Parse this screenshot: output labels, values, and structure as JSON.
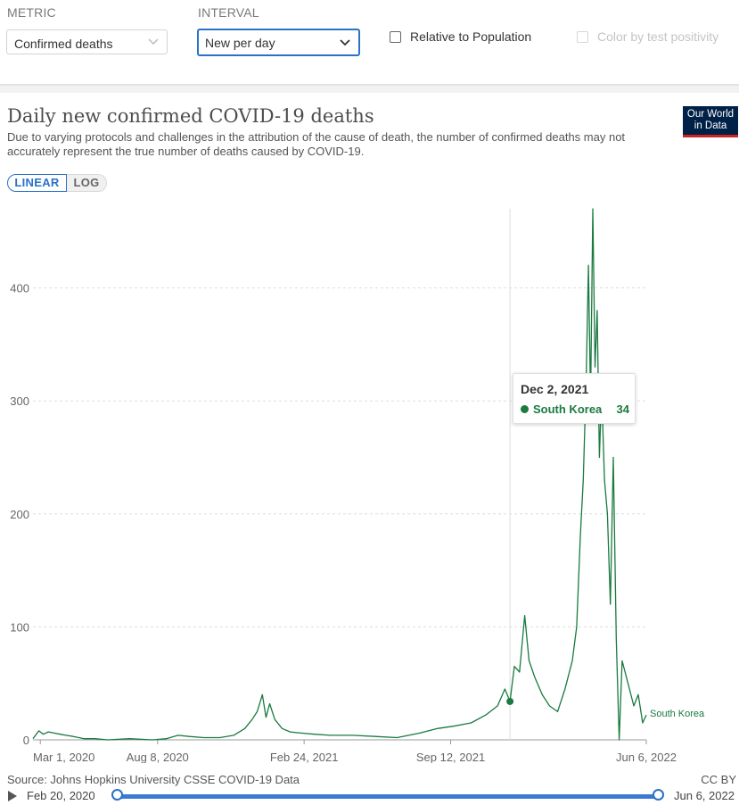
{
  "controls": {
    "metric_label": "METRIC",
    "metric_value": "Confirmed deaths",
    "interval_label": "INTERVAL",
    "interval_value": "New per day",
    "relative_label": "Relative to Population",
    "positivity_label": "Color by test positivity"
  },
  "header": {
    "title": "Daily new confirmed COVID-19 deaths",
    "subtitle": "Due to varying protocols and challenges in the attribution of the cause of death, the number of confirmed deaths may not accurately represent the true number of deaths caused by COVID-19.",
    "logo_line1": "Our World",
    "logo_line2": "in Data"
  },
  "scale_toggle": {
    "linear": "LINEAR",
    "log": "LOG",
    "selected": "LINEAR"
  },
  "tooltip": {
    "date": "Dec 2, 2021",
    "country": "South Korea",
    "value": "34"
  },
  "footer": {
    "source": "Source: Johns Hopkins University CSSE COVID-19 Data",
    "license": "CC BY",
    "timeline_start": "Feb 20, 2020",
    "timeline_end": "Jun 6, 2022"
  },
  "colors": {
    "series": "#1a7a3f",
    "accent": "#2a72c7",
    "logo_bg": "#002147",
    "logo_bar": "#ce261e"
  },
  "chart_data": {
    "type": "line",
    "title": "Daily new confirmed COVID-19 deaths",
    "xlabel": "",
    "ylabel": "",
    "y_ticks": [
      0,
      100,
      200,
      300,
      400
    ],
    "ylim": [
      0,
      470
    ],
    "x_tick_labels": [
      "Mar 1, 2020",
      "Aug 8, 2020",
      "Feb 24, 2021",
      "Sep 12, 2021",
      "Jun 6, 2022"
    ],
    "x_tick_dates": [
      "2020-03-01",
      "2020-08-08",
      "2021-02-24",
      "2021-09-12",
      "2022-06-06"
    ],
    "xlim": [
      "2020-02-20",
      "2022-06-06"
    ],
    "grid": "horizontal dotted",
    "hover_date": "2021-12-02",
    "series": [
      {
        "name": "South Korea",
        "points": [
          [
            "2020-02-20",
            1
          ],
          [
            "2020-02-28",
            8
          ],
          [
            "2020-03-05",
            5
          ],
          [
            "2020-03-12",
            7
          ],
          [
            "2020-03-20",
            6
          ],
          [
            "2020-03-28",
            5
          ],
          [
            "2020-04-05",
            4
          ],
          [
            "2020-04-15",
            3
          ],
          [
            "2020-04-30",
            1
          ],
          [
            "2020-05-15",
            1
          ],
          [
            "2020-06-01",
            0
          ],
          [
            "2020-07-01",
            1
          ],
          [
            "2020-08-01",
            0
          ],
          [
            "2020-08-20",
            1
          ],
          [
            "2020-09-05",
            4
          ],
          [
            "2020-09-20",
            3
          ],
          [
            "2020-10-10",
            2
          ],
          [
            "2020-11-01",
            2
          ],
          [
            "2020-11-20",
            4
          ],
          [
            "2020-12-05",
            10
          ],
          [
            "2020-12-15",
            18
          ],
          [
            "2020-12-22",
            25
          ],
          [
            "2020-12-29",
            40
          ],
          [
            "2021-01-03",
            20
          ],
          [
            "2021-01-08",
            32
          ],
          [
            "2021-01-15",
            18
          ],
          [
            "2021-01-25",
            10
          ],
          [
            "2021-02-05",
            7
          ],
          [
            "2021-02-20",
            6
          ],
          [
            "2021-03-10",
            5
          ],
          [
            "2021-04-01",
            4
          ],
          [
            "2021-05-01",
            4
          ],
          [
            "2021-06-01",
            3
          ],
          [
            "2021-07-01",
            2
          ],
          [
            "2021-08-01",
            6
          ],
          [
            "2021-08-25",
            10
          ],
          [
            "2021-09-15",
            12
          ],
          [
            "2021-10-10",
            15
          ],
          [
            "2021-10-30",
            22
          ],
          [
            "2021-11-15",
            30
          ],
          [
            "2021-11-25",
            45
          ],
          [
            "2021-12-02",
            34
          ],
          [
            "2021-12-08",
            65
          ],
          [
            "2021-12-15",
            60
          ],
          [
            "2021-12-22",
            110
          ],
          [
            "2021-12-28",
            70
          ],
          [
            "2022-01-05",
            55
          ],
          [
            "2022-01-15",
            40
          ],
          [
            "2022-01-25",
            30
          ],
          [
            "2022-02-05",
            25
          ],
          [
            "2022-02-15",
            45
          ],
          [
            "2022-02-25",
            70
          ],
          [
            "2022-03-03",
            100
          ],
          [
            "2022-03-08",
            180
          ],
          [
            "2022-03-12",
            230
          ],
          [
            "2022-03-16",
            320
          ],
          [
            "2022-03-19",
            420
          ],
          [
            "2022-03-22",
            300
          ],
          [
            "2022-03-25",
            470
          ],
          [
            "2022-03-28",
            330
          ],
          [
            "2022-03-31",
            380
          ],
          [
            "2022-04-03",
            250
          ],
          [
            "2022-04-06",
            310
          ],
          [
            "2022-04-10",
            230
          ],
          [
            "2022-04-14",
            200
          ],
          [
            "2022-04-18",
            120
          ],
          [
            "2022-04-22",
            250
          ],
          [
            "2022-04-26",
            90
          ],
          [
            "2022-04-30",
            0
          ],
          [
            "2022-05-04",
            70
          ],
          [
            "2022-05-08",
            60
          ],
          [
            "2022-05-14",
            45
          ],
          [
            "2022-05-20",
            30
          ],
          [
            "2022-05-26",
            40
          ],
          [
            "2022-06-01",
            15
          ],
          [
            "2022-06-06",
            22
          ]
        ]
      }
    ]
  }
}
